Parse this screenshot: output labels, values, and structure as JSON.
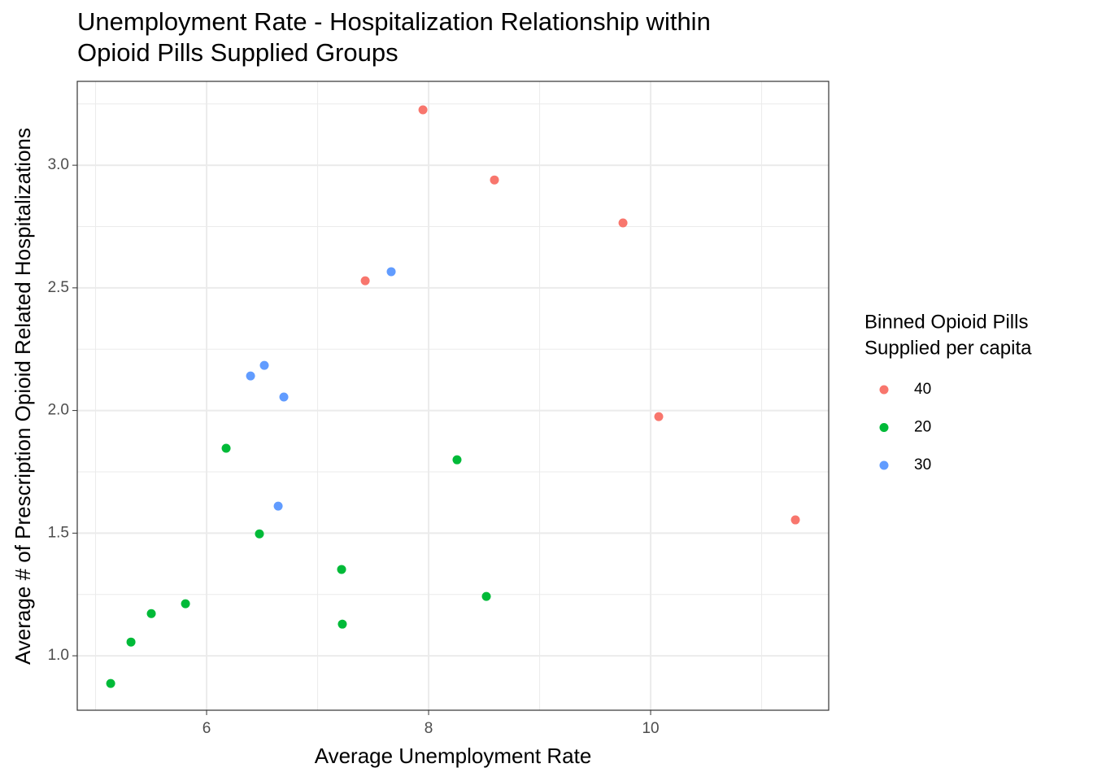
{
  "chart_data": {
    "type": "scatter",
    "title": [
      "Unemployment Rate - Hospitalization Relationship within",
      "Opioid Pills Supplied Groups"
    ],
    "x_label": "Average Unemployment Rate",
    "y_label": "Average # of Prescription Opioid Related Hospitalizations",
    "legend_title": [
      "Binned Opioid Pills",
      "Supplied per capita"
    ],
    "legend_position": "right",
    "grid": true,
    "xlim": [
      4.835,
      11.604
    ],
    "ylim": [
      0.778,
      3.342
    ],
    "xticks": [
      6,
      8,
      10
    ],
    "yticks": [
      {
        "value": 1,
        "label": "1.0"
      },
      1.5,
      {
        "value": 2,
        "label": "2.0"
      },
      2.5,
      {
        "value": 3,
        "label": "3.0"
      }
    ],
    "xminorticks": [
      5,
      7,
      9,
      11
    ],
    "yminorticks": [
      1.25,
      1.75,
      2.25,
      2.75,
      3.25
    ],
    "series": [
      {
        "name": "40",
        "color": "#f8766d",
        "x": [
          7.949,
          8.593,
          9.751,
          7.429,
          10.073,
          11.304
        ],
        "values": [
          3.226,
          2.94,
          2.765,
          2.529,
          1.975,
          1.554
        ]
      },
      {
        "name": "20",
        "color": "#00ba38",
        "x": [
          6.176,
          8.256,
          6.476,
          7.216,
          8.52,
          5.81,
          5.502,
          7.223,
          5.319,
          5.136
        ],
        "values": [
          1.846,
          1.799,
          1.497,
          1.352,
          1.242,
          1.212,
          1.172,
          1.129,
          1.056,
          0.887
        ]
      },
      {
        "name": "30",
        "color": "#619cff",
        "x": [
          7.663,
          6.52,
          6.396,
          6.696,
          6.645
        ],
        "values": [
          2.566,
          2.184,
          2.141,
          2.055,
          1.61
        ]
      }
    ]
  }
}
